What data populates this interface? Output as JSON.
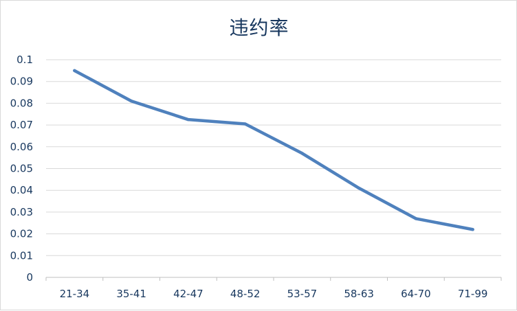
{
  "chart_data": {
    "type": "line",
    "title": "违约率",
    "xlabel": "",
    "ylabel": "",
    "categories": [
      "21-34",
      "35-41",
      "42-47",
      "48-52",
      "53-57",
      "58-63",
      "64-70",
      "71-99"
    ],
    "series": [
      {
        "values": [
          0.095,
          0.081,
          0.0725,
          0.0705,
          0.057,
          0.041,
          0.027,
          0.022
        ],
        "color": "#4f81bd"
      }
    ],
    "ylim": [
      0,
      0.1
    ],
    "yticks": [
      "0",
      "0.01",
      "0.02",
      "0.03",
      "0.04",
      "0.05",
      "0.06",
      "0.07",
      "0.08",
      "0.09",
      "0.1"
    ],
    "grid": true,
    "legend": "none"
  }
}
